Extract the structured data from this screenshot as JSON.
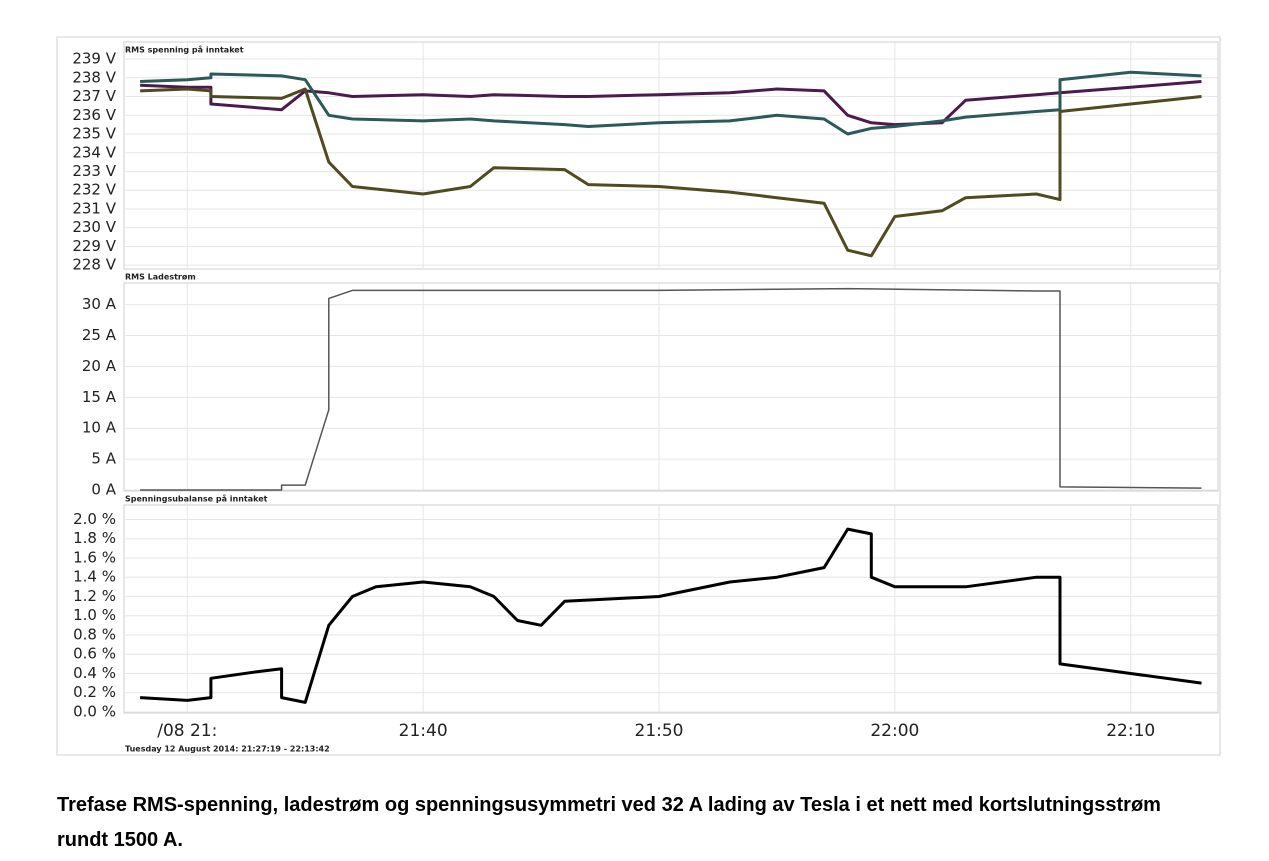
{
  "chart_data": [
    {
      "type": "line",
      "title": "RMS spenning på inntaket",
      "x": [
        "21:28",
        "21:30",
        "21:31",
        "21:31",
        "21:34",
        "21:35",
        "21:36",
        "21:37",
        "21:40",
        "21:42",
        "21:43",
        "21:46",
        "21:47",
        "21:50",
        "21:53",
        "21:55",
        "21:57",
        "21:58",
        "21:59",
        "22:00",
        "22:02",
        "22:03",
        "22:06",
        "22:07",
        "22:07",
        "22:10",
        "22:13"
      ],
      "series": [
        {
          "color": "#4d1a50",
          "values": [
            237.6,
            237.5,
            237.5,
            236.6,
            236.3,
            237.3,
            237.2,
            237.0,
            237.1,
            237.0,
            237.1,
            237.0,
            237.0,
            237.1,
            237.2,
            237.4,
            237.3,
            236.0,
            235.6,
            235.5,
            235.6,
            236.8,
            237.1,
            237.2,
            237.2,
            237.5,
            237.8
          ]
        },
        {
          "color": "#2c5a5c",
          "values": [
            237.8,
            237.9,
            238.0,
            238.2,
            238.1,
            237.9,
            236.0,
            235.8,
            235.7,
            235.8,
            235.7,
            235.5,
            235.4,
            235.6,
            235.7,
            236.0,
            235.8,
            235.0,
            235.3,
            235.4,
            235.7,
            235.9,
            236.2,
            236.3,
            237.9,
            238.3,
            238.1
          ]
        },
        {
          "color": "#4f4a1f",
          "values": [
            237.3,
            237.4,
            237.3,
            237.0,
            236.9,
            237.4,
            233.5,
            232.2,
            231.8,
            232.2,
            233.2,
            233.1,
            232.3,
            232.2,
            231.9,
            231.6,
            231.3,
            228.8,
            228.5,
            230.6,
            230.9,
            231.6,
            231.8,
            231.5,
            236.2,
            236.6,
            237.0
          ]
        }
      ],
      "ylim": [
        227.85,
        239.75
      ],
      "yticks": [
        {
          "value": 228,
          "label": "228 V"
        },
        {
          "value": 229,
          "label": "229 V"
        },
        {
          "value": 230,
          "label": "230 V"
        },
        {
          "value": 231,
          "label": "231 V"
        },
        {
          "value": 232,
          "label": "232 V"
        },
        {
          "value": 233,
          "label": "233 V"
        },
        {
          "value": 234,
          "label": "234 V"
        },
        {
          "value": 235,
          "label": "235 V"
        },
        {
          "value": 236,
          "label": "236 V"
        },
        {
          "value": 237,
          "label": "237 V"
        },
        {
          "value": 238,
          "label": "238 V"
        },
        {
          "value": 239,
          "label": "239 V"
        }
      ],
      "grid": true
    },
    {
      "type": "line",
      "title": "RMS Ladestrøm",
      "x": [
        "21:28",
        "21:34",
        "21:34",
        "21:35",
        "21:36",
        "21:36",
        "21:37",
        "21:50",
        "21:58",
        "22:06",
        "22:07",
        "22:07",
        "22:10",
        "22:13"
      ],
      "series": [
        {
          "color": "#555555",
          "values": [
            0,
            0,
            0.8,
            0.8,
            13,
            31,
            32.3,
            32.3,
            32.6,
            32.2,
            32.2,
            0.5,
            0.4,
            0.3
          ]
        }
      ],
      "ylim": [
        0,
        33.5
      ],
      "yticks": [
        {
          "value": 0,
          "label": "0 A"
        },
        {
          "value": 5,
          "label": "5 A"
        },
        {
          "value": 10,
          "label": "10 A"
        },
        {
          "value": 15,
          "label": "15 A"
        },
        {
          "value": 20,
          "label": "20 A"
        },
        {
          "value": 25,
          "label": "25 A"
        },
        {
          "value": 30,
          "label": "30 A"
        }
      ],
      "grid": true
    },
    {
      "type": "line",
      "title": "Spenningsubalanse på inntaket",
      "x": [
        "21:28",
        "21:30",
        "21:31",
        "21:31",
        "21:33",
        "21:34",
        "21:34",
        "21:35",
        "21:36",
        "21:37",
        "21:38",
        "21:40",
        "21:42",
        "21:43",
        "21:44",
        "21:45",
        "21:46",
        "21:50",
        "21:53",
        "21:55",
        "21:57",
        "21:58",
        "21:59",
        "21:59",
        "22:00",
        "22:03",
        "22:06",
        "22:07",
        "22:07",
        "22:10",
        "22:13"
      ],
      "series": [
        {
          "color": "#000000",
          "values": [
            0.15,
            0.12,
            0.15,
            0.35,
            0.42,
            0.45,
            0.15,
            0.1,
            0.9,
            1.2,
            1.3,
            1.35,
            1.3,
            1.2,
            0.95,
            0.9,
            1.15,
            1.2,
            1.35,
            1.4,
            1.5,
            1.9,
            1.85,
            1.4,
            1.3,
            1.3,
            1.4,
            1.4,
            0.5,
            0.4,
            0.3
          ]
        }
      ],
      "ylim": [
        0,
        2.15
      ],
      "yticks": [
        {
          "value": 0,
          "label": "0.0 %"
        },
        {
          "value": 0.2,
          "label": "0.2 %"
        },
        {
          "value": 0.4,
          "label": "0.4 %"
        },
        {
          "value": 0.6,
          "label": "0.6 %"
        },
        {
          "value": 0.8,
          "label": "0.8 %"
        },
        {
          "value": 1.0,
          "label": "1.0 %"
        },
        {
          "value": 1.2,
          "label": "1.2 %"
        },
        {
          "value": 1.4,
          "label": "1.4 %"
        },
        {
          "value": 1.6,
          "label": "1.6 %"
        },
        {
          "value": 1.8,
          "label": "1.8 %"
        },
        {
          "value": 2.0,
          "label": "2.0 %"
        }
      ],
      "xlim": [
        "21:27:19",
        "22:13:42"
      ],
      "xticks": [
        {
          "value": "21:30",
          "label": "/08 21:"
        },
        "21:40",
        "21:50",
        "22:00",
        "22:10"
      ],
      "grid": true
    }
  ],
  "footer": "Tuesday 12 August 2014: 21:27:19 - 22:13:42",
  "caption": "Trefase RMS-spenning, ladestrøm og spenningsusymmetri ved 32 A lading av Tesla i et nett med kortslutningsstrøm rundt 1500 A."
}
